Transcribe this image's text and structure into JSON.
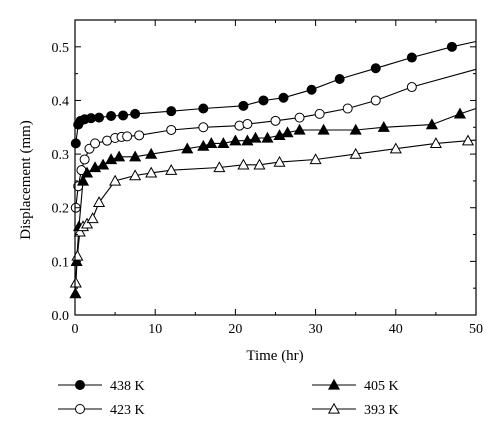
{
  "chart_data": {
    "type": "line",
    "xlabel": "Time (hr)",
    "ylabel": "Displacement (mm)",
    "xlim": [
      0,
      50
    ],
    "ylim": [
      0,
      0.55
    ],
    "xticks": [
      0,
      10,
      20,
      30,
      40,
      50
    ],
    "yticks": [
      0.0,
      0.1,
      0.2,
      0.3,
      0.4,
      0.5
    ],
    "xtick_labels": [
      "0",
      "10",
      "20",
      "30",
      "40",
      "50"
    ],
    "ytick_labels": [
      "0.0",
      "0.1",
      "0.2",
      "0.3",
      "0.4",
      "0.5"
    ],
    "grid": false,
    "legend_position": "below",
    "series": [
      {
        "name": "438 K",
        "marker": "filled-circle",
        "points": [
          [
            0.1,
            0.32
          ],
          [
            0.4,
            0.355
          ],
          [
            0.7,
            0.362
          ],
          [
            1.2,
            0.365
          ],
          [
            2,
            0.367
          ],
          [
            3,
            0.368
          ],
          [
            4.5,
            0.371
          ],
          [
            6,
            0.372
          ],
          [
            7.5,
            0.375
          ],
          [
            12,
            0.38
          ],
          [
            16,
            0.385
          ],
          [
            21,
            0.39
          ],
          [
            23.5,
            0.4
          ],
          [
            26,
            0.405
          ],
          [
            29.5,
            0.42
          ],
          [
            33,
            0.44
          ],
          [
            37.5,
            0.46
          ],
          [
            42,
            0.48
          ],
          [
            47,
            0.5
          ]
        ],
        "curve_end": [
          50,
          0.51
        ]
      },
      {
        "name": "423 K",
        "marker": "open-circle",
        "points": [
          [
            0.1,
            0.2
          ],
          [
            0.4,
            0.24
          ],
          [
            0.8,
            0.27
          ],
          [
            1.2,
            0.29
          ],
          [
            1.8,
            0.31
          ],
          [
            2.5,
            0.32
          ],
          [
            4,
            0.325
          ],
          [
            5,
            0.33
          ],
          [
            5.8,
            0.332
          ],
          [
            6.5,
            0.333
          ],
          [
            8,
            0.335
          ],
          [
            12,
            0.345
          ],
          [
            16,
            0.35
          ],
          [
            20.5,
            0.353
          ],
          [
            21.5,
            0.356
          ],
          [
            25,
            0.362
          ],
          [
            28,
            0.368
          ],
          [
            30.5,
            0.375
          ],
          [
            34,
            0.385
          ],
          [
            37.5,
            0.4
          ],
          [
            42,
            0.425
          ]
        ],
        "curve_end": [
          50,
          0.458
        ]
      },
      {
        "name": "405 K",
        "marker": "filled-triangle",
        "points": [
          [
            0.05,
            0.04
          ],
          [
            0.2,
            0.1
          ],
          [
            0.5,
            0.165
          ],
          [
            1.0,
            0.25
          ],
          [
            1.5,
            0.265
          ],
          [
            2.5,
            0.275
          ],
          [
            3.5,
            0.28
          ],
          [
            4.5,
            0.29
          ],
          [
            5.5,
            0.295
          ],
          [
            7.5,
            0.295
          ],
          [
            9.5,
            0.3
          ],
          [
            14,
            0.31
          ],
          [
            16,
            0.315
          ],
          [
            17,
            0.32
          ],
          [
            18.5,
            0.32
          ],
          [
            20,
            0.325
          ],
          [
            21.5,
            0.325
          ],
          [
            22.5,
            0.33
          ],
          [
            24,
            0.33
          ],
          [
            25.5,
            0.335
          ],
          [
            26.5,
            0.34
          ],
          [
            28,
            0.345
          ],
          [
            31,
            0.345
          ],
          [
            35,
            0.345
          ],
          [
            38.5,
            0.35
          ],
          [
            44.5,
            0.355
          ],
          [
            48,
            0.375
          ]
        ],
        "curve_end": [
          50,
          0.385
        ]
      },
      {
        "name": "393 K",
        "marker": "open-triangle",
        "points": [
          [
            0.1,
            0.06
          ],
          [
            0.3,
            0.11
          ],
          [
            0.6,
            0.155
          ],
          [
            1.0,
            0.165
          ],
          [
            1.5,
            0.17
          ],
          [
            2.2,
            0.18
          ],
          [
            3.0,
            0.21
          ],
          [
            5.0,
            0.25
          ],
          [
            7.5,
            0.26
          ],
          [
            9.5,
            0.265
          ],
          [
            12,
            0.27
          ],
          [
            18,
            0.275
          ],
          [
            21,
            0.28
          ],
          [
            23,
            0.28
          ],
          [
            25.5,
            0.285
          ],
          [
            30,
            0.29
          ],
          [
            35,
            0.3
          ],
          [
            40,
            0.31
          ],
          [
            45,
            0.32
          ],
          [
            49,
            0.325
          ]
        ],
        "curve_end": [
          50,
          0.326
        ]
      }
    ]
  }
}
